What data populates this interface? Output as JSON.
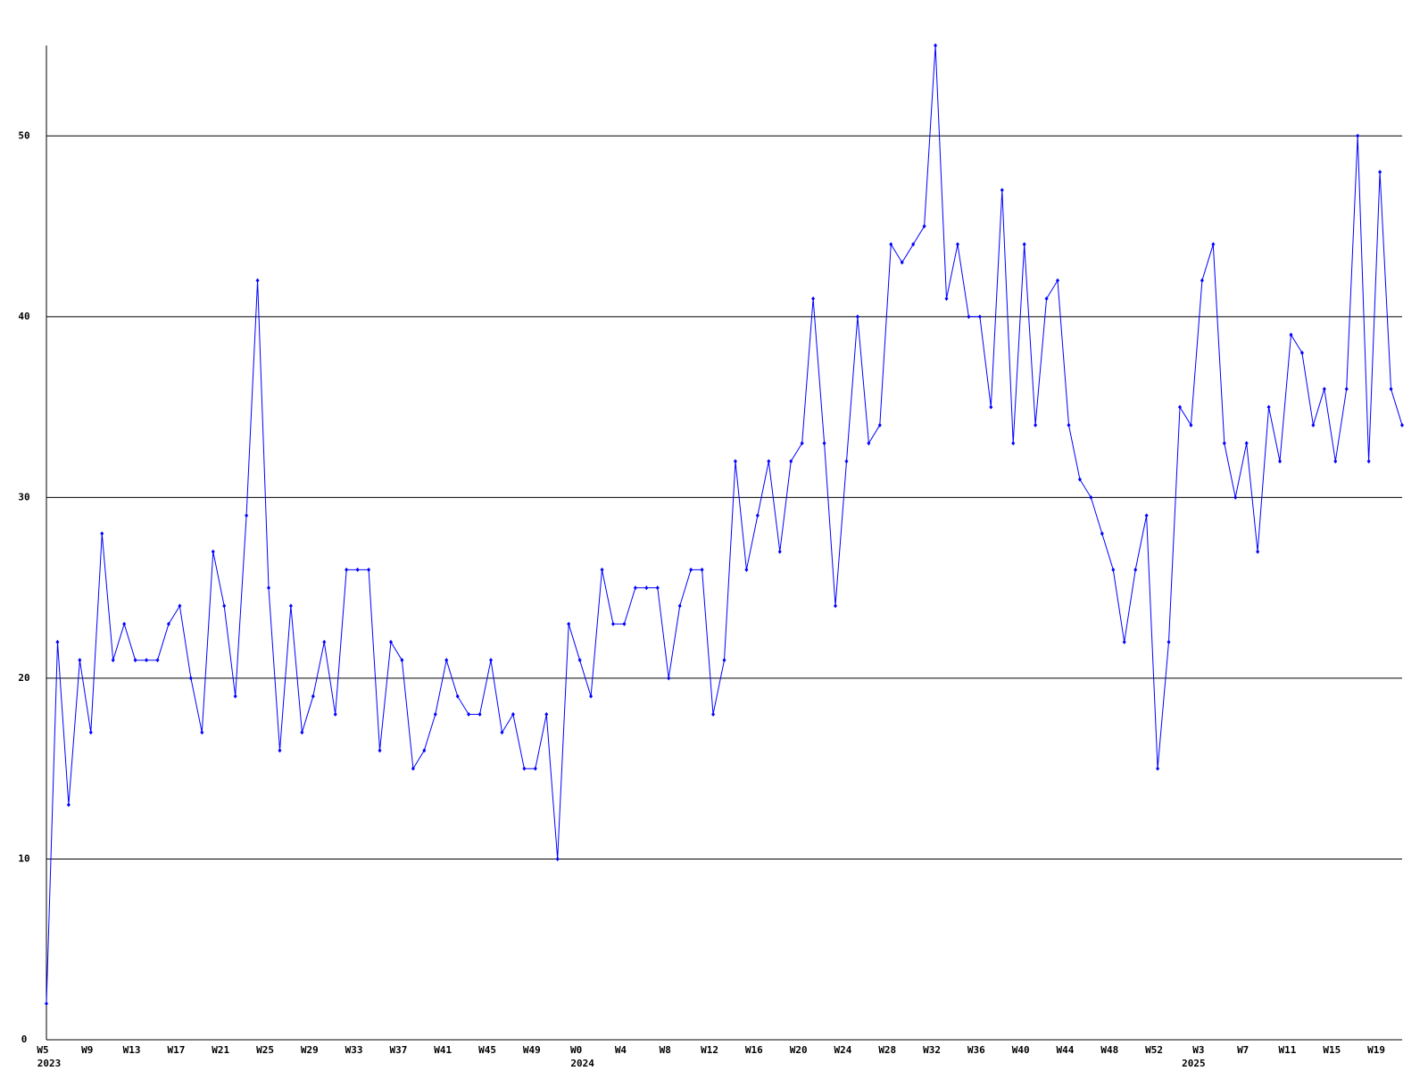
{
  "chart_data": {
    "type": "line",
    "categories": [
      "W5",
      null,
      null,
      null,
      "W9",
      null,
      null,
      null,
      "W13",
      null,
      null,
      null,
      "W17",
      null,
      null,
      null,
      "W21",
      null,
      null,
      null,
      "W25",
      null,
      null,
      null,
      "W29",
      null,
      null,
      null,
      "W33",
      null,
      null,
      null,
      "W37",
      null,
      null,
      null,
      "W41",
      null,
      null,
      null,
      "W45",
      null,
      null,
      null,
      "W49",
      null,
      null,
      null,
      "W0",
      null,
      null,
      null,
      "W4",
      null,
      null,
      null,
      "W8",
      null,
      null,
      null,
      "W12",
      null,
      null,
      null,
      "W16",
      null,
      null,
      null,
      "W20",
      null,
      null,
      null,
      "W24",
      null,
      null,
      null,
      "W28",
      null,
      null,
      null,
      "W32",
      null,
      null,
      null,
      "W36",
      null,
      null,
      null,
      "W40",
      null,
      null,
      null,
      "W44",
      null,
      null,
      null,
      "W48",
      null,
      null,
      null,
      "W52",
      null,
      null,
      null,
      "W3",
      null,
      null,
      null,
      "W7",
      null,
      null,
      null,
      "W11",
      null,
      null,
      null,
      "W15",
      null,
      null,
      null,
      "W19",
      null,
      null
    ],
    "years": [
      "2023",
      null,
      null,
      null,
      null,
      null,
      null,
      null,
      null,
      null,
      null,
      null,
      null,
      null,
      null,
      null,
      null,
      null,
      null,
      null,
      null,
      null,
      null,
      null,
      null,
      null,
      null,
      null,
      null,
      null,
      null,
      null,
      null,
      null,
      null,
      null,
      null,
      null,
      null,
      null,
      null,
      null,
      null,
      null,
      null,
      null,
      null,
      null,
      "2024",
      null,
      null,
      null,
      null,
      null,
      null,
      null,
      null,
      null,
      null,
      null,
      null,
      null,
      null,
      null,
      null,
      null,
      null,
      null,
      null,
      null,
      null,
      null,
      null,
      null,
      null,
      null,
      null,
      null,
      null,
      null,
      null,
      null,
      null,
      null,
      null,
      null,
      null,
      null,
      null,
      null,
      null,
      null,
      null,
      null,
      null,
      null,
      null,
      null,
      null,
      null,
      null,
      null,
      null,
      "2025",
      null,
      null,
      null,
      null,
      null,
      null,
      null,
      null,
      null,
      null,
      null,
      null,
      null,
      null,
      null,
      null,
      null,
      null,
      null,
      null,
      null
    ],
    "series": [
      {
        "color": "#0000ff",
        "values": [
          2,
          22,
          13,
          21,
          17,
          28,
          21,
          23,
          21,
          21,
          21,
          23,
          24,
          20,
          17,
          27,
          24,
          19,
          29,
          42,
          25,
          16,
          24,
          17,
          19,
          22,
          18,
          26,
          26,
          26,
          16,
          22,
          21,
          15,
          16,
          18,
          21,
          19,
          18,
          18,
          21,
          17,
          18,
          15,
          15,
          18,
          10,
          23,
          21,
          19,
          26,
          23,
          23,
          25,
          25,
          25,
          20,
          24,
          26,
          26,
          18,
          21,
          32,
          26,
          29,
          32,
          27,
          32,
          33,
          41,
          33,
          24,
          32,
          40,
          33,
          34,
          44,
          43,
          44,
          45,
          55,
          41,
          44,
          40,
          40,
          35,
          47,
          33,
          44,
          34,
          41,
          42,
          34,
          31,
          30,
          28,
          26,
          22,
          26,
          29,
          15,
          22,
          35,
          34,
          42,
          44,
          33,
          30,
          33,
          27,
          35,
          32,
          39,
          38,
          34,
          36,
          32,
          36,
          50,
          32,
          48,
          36,
          34
        ]
      }
    ],
    "ylim": [
      0,
      55
    ],
    "yticks": [
      0,
      10,
      20,
      30,
      40,
      50
    ],
    "grid": true
  }
}
